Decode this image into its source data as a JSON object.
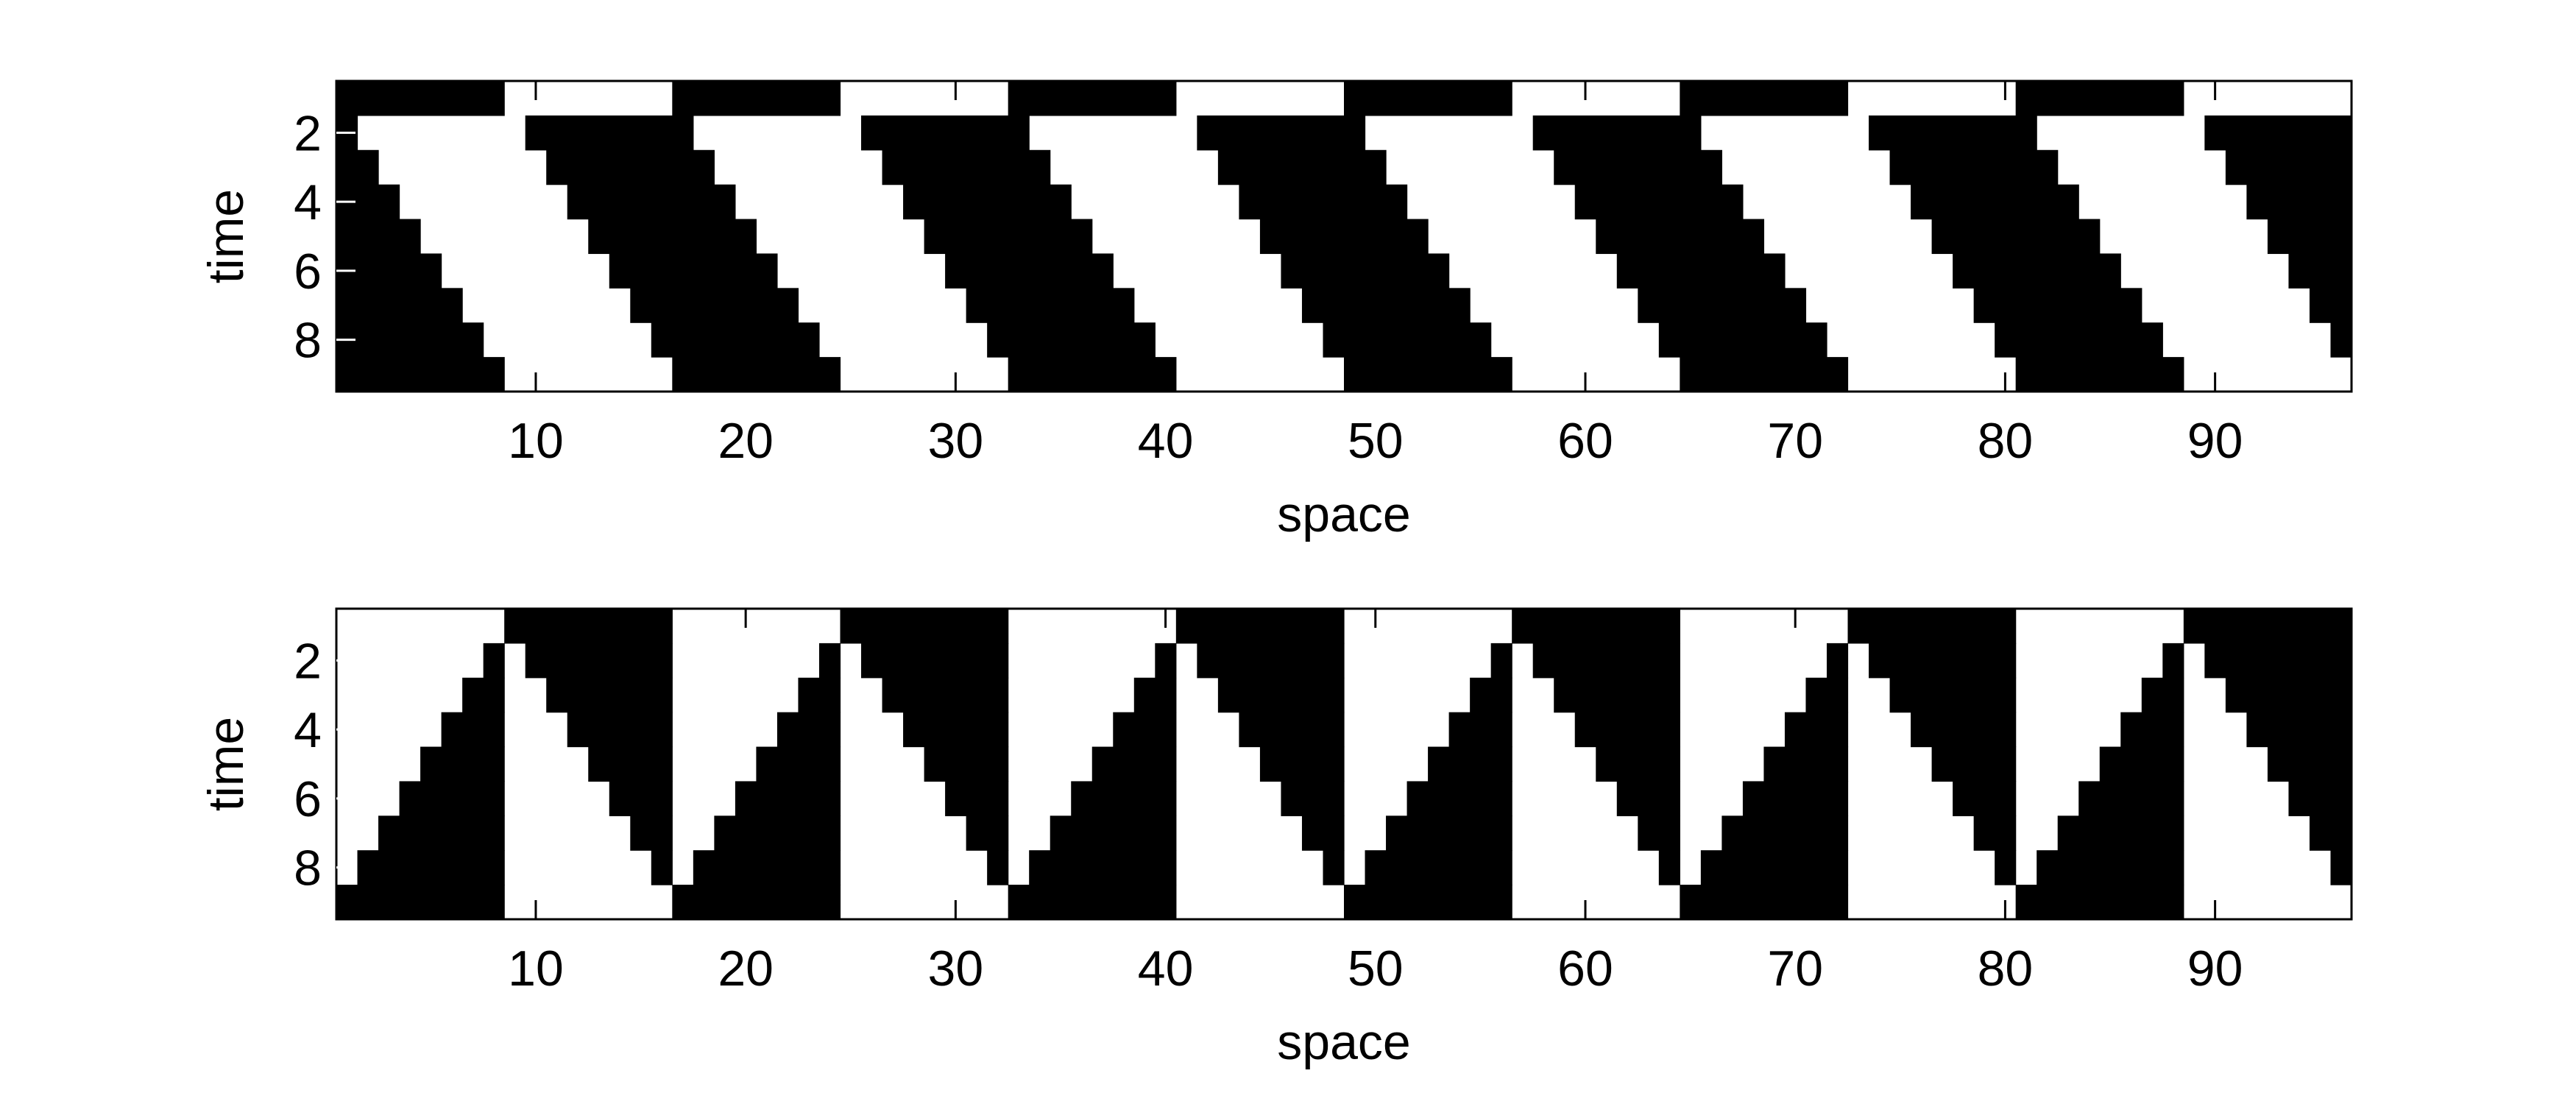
{
  "chart_data": [
    {
      "type": "heatmap",
      "title": "",
      "xlabel": "space",
      "ylabel": "time",
      "xlim": [
        0.5,
        96.5
      ],
      "ylim": [
        0.5,
        9.5
      ],
      "y_reversed": true,
      "xticks": [
        10,
        20,
        30,
        40,
        50,
        60,
        70,
        80,
        90
      ],
      "yticks": [
        2,
        4,
        6,
        8
      ],
      "colors": {
        "0": "#ffffff",
        "1": "#000000"
      },
      "description_rule": "cell(t, x): period 16 in x, half-width 8",
      "rows": [
        "111111110000000011111111000000001111111100000000111111110000000011111111000000001111111100000000",
        "100000000111111110000000011111111000000001111111100000000111111110000000011111111000000001111111",
        "110000000011111111000000001111111100000000111111110000000011111111000000001111111100000000111111",
        "111000000001111111100000000111111110000000011111111000000001111111100000000111111110000000011111",
        "111100000000111111110000000011111111000000001111111100000000111111110000000011111111000000001111",
        "111110000000011111111000000001111111100000000111111110000000011111111000000001111111100000000111",
        "111111000000001111111100000000111111110000000011111111000000001111111100000000111111110000000011",
        "111111100000000111111110000000011111111000000001111111100000000111111110000000011111111000000001",
        "111111110000000011111111000000001111111100000000111111110000000011111111000000001111111100000000"
      ]
    },
    {
      "type": "heatmap",
      "title": "",
      "xlabel": "space",
      "ylabel": "time",
      "xlim": [
        0.5,
        96.5
      ],
      "ylim": [
        0.5,
        9.5
      ],
      "y_reversed": true,
      "xticks": [
        10,
        20,
        30,
        40,
        50,
        60,
        70,
        80,
        90
      ],
      "yticks": [
        2,
        4,
        6,
        8
      ],
      "colors": {
        "0": "#ffffff",
        "1": "#000000"
      },
      "rows": [
        "000000001111111100000000111111110000000011111111000000001111111100000000111111110000000011111111",
        "000000010111111100000001011111110000000101111111000000010111111100000001011111110000000101111111",
        "000000110011111100000011001111110000001100111111000000110011111100000011001111110000001100111111",
        "000001110001111100000111000111110000011100011111000001110001111100000111000111110000011100011111",
        "000011110000111100001111000011110000111100001111000011110000111100001111000011110000111100001111",
        "000111110000011100011111000001110001111100000111000111110000011100011111000001110001111100000111",
        "001111110000001100111111000000110011111100000011001111110000001100111111000000110011111100000011",
        "011111110000000101111111000000010111111100000001011111110000000101111111000000010111111100000001",
        "111111110000000011111111000000001111111100000000111111110000000011111111000000001111111100000000"
      ]
    }
  ]
}
